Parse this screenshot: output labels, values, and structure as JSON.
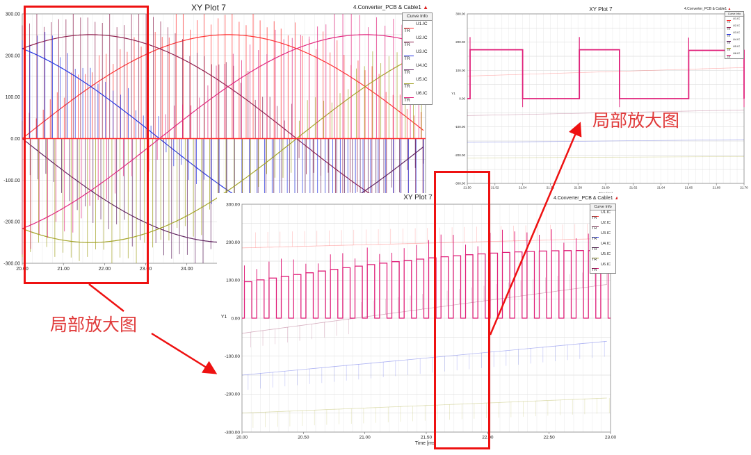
{
  "chart_data": [
    {
      "id": "main",
      "type": "line",
      "title": "XY Plot 7",
      "source": "4.Converter_PCB & Cable1",
      "ylabel": "",
      "xlabel": "",
      "x_ticks": [
        "20.00",
        "21.00",
        "22.00",
        "23.00",
        "24.00"
      ],
      "y_ticks": [
        "300.00",
        "200.00",
        "100.00",
        "0.00",
        "-100.00",
        "-200.00",
        "-300.00"
      ],
      "xlim": [
        20,
        29.8
      ],
      "ylim": [
        -300,
        300
      ],
      "grid": true,
      "legend_title": "Curve Info",
      "legend_position": "top-right",
      "legend_tr": "TR",
      "series": [
        {
          "name": "U1.IC",
          "color": "#ff2a2a",
          "amplitude": 250,
          "phase_deg": 0
        },
        {
          "name": "U2.IC",
          "color": "#8b1a4a",
          "amplitude": 250,
          "phase_deg": 60
        },
        {
          "name": "U3.IC",
          "color": "#1f2ee0",
          "amplitude": 250,
          "phase_deg": 120
        },
        {
          "name": "U4.IC",
          "color": "#5a1a5a",
          "amplitude": 250,
          "phase_deg": 180
        },
        {
          "name": "U5.IC",
          "color": "#a0a020",
          "amplitude": 250,
          "phase_deg": 240
        },
        {
          "name": "U6.IC",
          "color": "#e0207a",
          "amplitude": 250,
          "phase_deg": 300
        }
      ],
      "period_ms": 20,
      "switching_period_ms": 0.1
    },
    {
      "id": "mid",
      "type": "line",
      "title": "XY Plot 7",
      "source": "4.Converter_PCB & Cable1",
      "xlabel": "Time [ms]",
      "ylabel": "Y1",
      "x_ticks": [
        "20.00",
        "20.50",
        "21.00",
        "21.50",
        "22.00",
        "22.50",
        "23.00"
      ],
      "y_ticks": [
        "300.00",
        "200.00",
        "100.00",
        "0.00",
        "-100.00",
        "-200.00",
        "-300.00"
      ],
      "xlim": [
        20,
        23
      ],
      "ylim": [
        -300,
        300
      ],
      "grid": true,
      "legend_title": "Curve Info",
      "legend_position": "top-right",
      "legend_tr": "TR",
      "series": [
        {
          "name": "U1.IC",
          "color": "#ff2a2a"
        },
        {
          "name": "U2.IC",
          "color": "#8b1a4a"
        },
        {
          "name": "U3.IC",
          "color": "#1f2ee0"
        },
        {
          "name": "U4.IC",
          "color": "#5a1a5a"
        },
        {
          "name": "U5.IC",
          "color": "#a0a020"
        },
        {
          "name": "U6.IC",
          "color": "#e0207a"
        }
      ],
      "highlight_series": "U6.IC",
      "envelope": {
        "start": 95,
        "end": 178
      },
      "switching_period_ms": 0.1
    },
    {
      "id": "top",
      "type": "line",
      "title": "XY Plot 7",
      "source": "4.Converter_PCB & Cable1",
      "xlabel": "Time [ms]",
      "ylabel": "Y1",
      "x_ticks": [
        "21.50",
        "21.52",
        "21.54",
        "21.56",
        "21.58",
        "21.60",
        "21.62",
        "21.64",
        "21.66",
        "21.68",
        "21.70"
      ],
      "y_ticks": [
        "300.00",
        "200.00",
        "100.00",
        "0.00",
        "-100.00",
        "-200.00",
        "-300.00"
      ],
      "xlim": [
        21.5,
        21.7
      ],
      "ylim": [
        -300,
        300
      ],
      "grid": true,
      "legend_title": "Curve Info",
      "legend_position": "top-right",
      "legend_tr": "TR",
      "series": [
        {
          "name": "U1.IC",
          "color": "#ff2a2a"
        },
        {
          "name": "U2.IC",
          "color": "#8b1a4a"
        },
        {
          "name": "U3.IC",
          "color": "#1f2ee0"
        },
        {
          "name": "U4.IC",
          "color": "#5a1a5a"
        },
        {
          "name": "U5.IC",
          "color": "#a0a020"
        },
        {
          "name": "U6.IC",
          "color": "#e0207a"
        }
      ],
      "pulses": [
        {
          "start": 21.502,
          "end": 21.54,
          "level": 173
        },
        {
          "start": 21.581,
          "end": 21.61,
          "level": 173
        },
        {
          "start": 21.66,
          "end": 21.7,
          "level": 171
        }
      ]
    }
  ],
  "annotations": {
    "zoom_label_left": "局部放大图",
    "zoom_label_right": "局部放大图",
    "box_color": "#ee1111",
    "arrow_color": "#ee1111"
  }
}
